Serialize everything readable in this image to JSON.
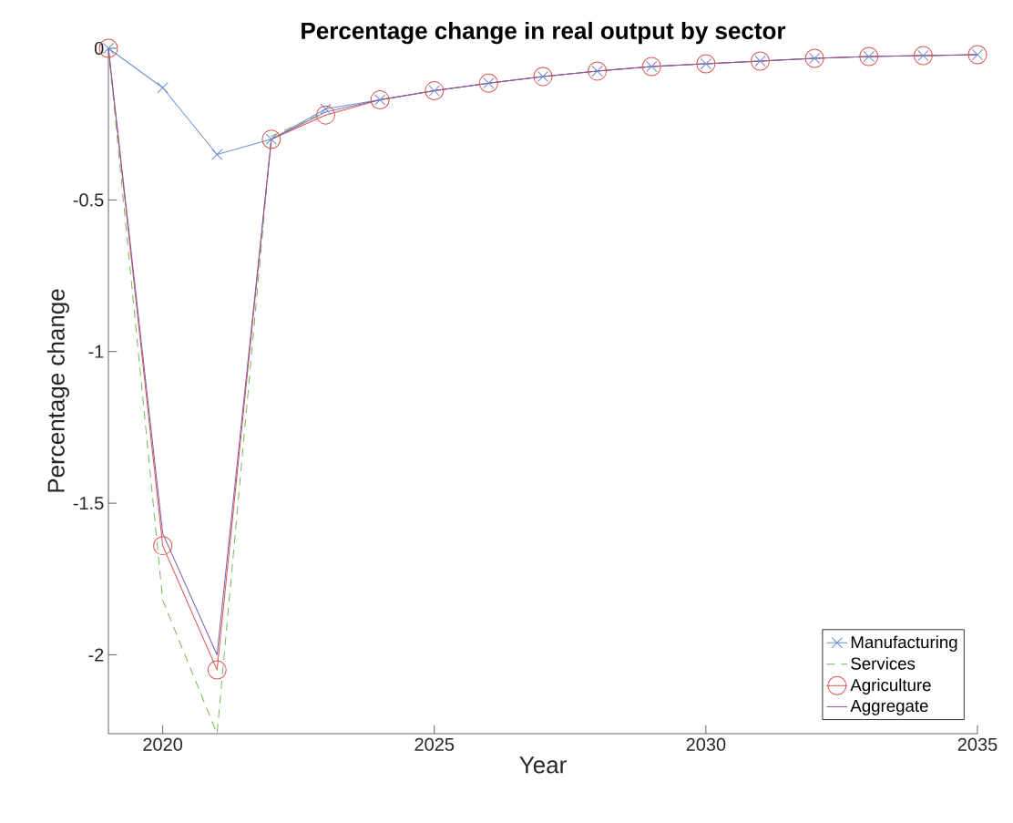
{
  "chart_data": {
    "type": "line",
    "title": "Percentage change in real output by sector",
    "xlabel": "Year",
    "ylabel": "Percentage change",
    "x": [
      2019,
      2020,
      2021,
      2022,
      2023,
      2024,
      2025,
      2026,
      2027,
      2028,
      2029,
      2030,
      2031,
      2032,
      2033,
      2034,
      2035
    ],
    "series": [
      {
        "name": "Manufacturing",
        "color": "#6a8fd0",
        "marker": "cross",
        "line_style": "solid",
        "values": [
          0,
          -0.13,
          -0.35,
          -0.3,
          -0.2,
          -0.17,
          -0.14,
          -0.115,
          -0.093,
          -0.075,
          -0.06,
          -0.051,
          -0.042,
          -0.033,
          -0.027,
          -0.024,
          -0.021
        ]
      },
      {
        "name": "Services",
        "color": "#77b756",
        "marker": "none",
        "line_style": "dashed",
        "values": [
          0,
          -1.82,
          -2.26,
          -0.29,
          -0.21,
          null,
          null,
          null,
          null,
          null,
          null,
          null,
          null,
          null,
          null,
          null,
          null
        ]
      },
      {
        "name": "Agriculture",
        "color": "#d9534f",
        "marker": "circle",
        "line_style": "solid",
        "values": [
          0,
          -1.64,
          -2.05,
          -0.3,
          -0.22,
          -0.17,
          -0.14,
          -0.115,
          -0.093,
          -0.075,
          -0.06,
          -0.051,
          -0.042,
          -0.033,
          -0.027,
          -0.024,
          -0.021
        ]
      },
      {
        "name": "Aggregate",
        "color": "#7e5aa8",
        "marker": "none",
        "line_style": "solid",
        "values": [
          0,
          -1.6,
          -2.0,
          -0.3,
          -0.21,
          -0.17,
          -0.14,
          -0.115,
          -0.093,
          -0.075,
          -0.06,
          -0.051,
          -0.042,
          -0.033,
          -0.027,
          -0.024,
          -0.021
        ]
      }
    ],
    "xlim": [
      2019,
      2035
    ],
    "xticks": [
      2020,
      2025,
      2030,
      2035
    ],
    "ylim": [
      -2.26,
      0
    ],
    "yticks": [
      -2,
      -1.5,
      -1,
      -0.5,
      0
    ],
    "legend": "bottom right",
    "grid": false
  }
}
